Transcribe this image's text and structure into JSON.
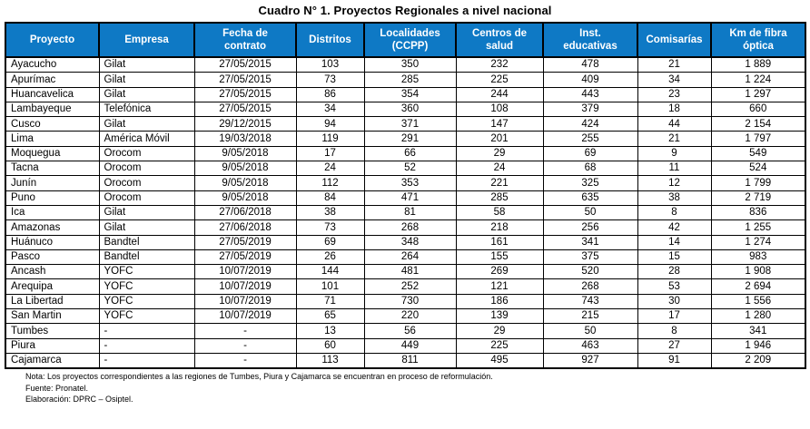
{
  "title": "Cuadro N° 1. Proyectos Regionales a nivel nacional",
  "colors": {
    "header_bg": "#0E79C5",
    "header_text": "#FFFFFF",
    "border": "#000000"
  },
  "table": {
    "columns": [
      {
        "label": "Proyecto",
        "width": 103
      },
      {
        "label": "Empresa",
        "width": 105
      },
      {
        "label": "Fecha de\ncontrato",
        "width": 112
      },
      {
        "label": "Distritos",
        "width": 75
      },
      {
        "label": "Localidades\n(CCPP)",
        "width": 101
      },
      {
        "label": "Centros de\nsalud",
        "width": 96
      },
      {
        "label": "Inst.\neducativas",
        "width": 104
      },
      {
        "label": "Comisarías",
        "width": 81
      },
      {
        "label": "Km de fibra\nóptica",
        "width": 104
      }
    ],
    "rows": [
      [
        "Ayacucho",
        "Gilat",
        "27/05/2015",
        "103",
        "350",
        "232",
        "478",
        "21",
        "1 889"
      ],
      [
        "Apurímac",
        "Gilat",
        "27/05/2015",
        "73",
        "285",
        "225",
        "409",
        "34",
        "1 224"
      ],
      [
        "Huancavelica",
        "Gilat",
        "27/05/2015",
        "86",
        "354",
        "244",
        "443",
        "23",
        "1 297"
      ],
      [
        "Lambayeque",
        "Telefónica",
        "27/05/2015",
        "34",
        "360",
        "108",
        "379",
        "18",
        "660"
      ],
      [
        "Cusco",
        "Gilat",
        "29/12/2015",
        "94",
        "371",
        "147",
        "424",
        "44",
        "2 154"
      ],
      [
        "Lima",
        "América Móvil",
        "19/03/2018",
        "119",
        "291",
        "201",
        "255",
        "21",
        "1 797"
      ],
      [
        "Moquegua",
        "Orocom",
        "9/05/2018",
        "17",
        "66",
        "29",
        "69",
        "9",
        "549"
      ],
      [
        "Tacna",
        "Orocom",
        "9/05/2018",
        "24",
        "52",
        "24",
        "68",
        "11",
        "524"
      ],
      [
        "Junín",
        "Orocom",
        "9/05/2018",
        "112",
        "353",
        "221",
        "325",
        "12",
        "1 799"
      ],
      [
        "Puno",
        "Orocom",
        "9/05/2018",
        "84",
        "471",
        "285",
        "635",
        "38",
        "2 719"
      ],
      [
        "Ica",
        "Gilat",
        "27/06/2018",
        "38",
        "81",
        "58",
        "50",
        "8",
        "836"
      ],
      [
        "Amazonas",
        "Gilat",
        "27/06/2018",
        "73",
        "268",
        "218",
        "256",
        "42",
        "1 255"
      ],
      [
        "Huánuco",
        "Bandtel",
        "27/05/2019",
        "69",
        "348",
        "161",
        "341",
        "14",
        "1 274"
      ],
      [
        "Pasco",
        "Bandtel",
        "27/05/2019",
        "26",
        "264",
        "155",
        "375",
        "15",
        "983"
      ],
      [
        "Ancash",
        "YOFC",
        "10/07/2019",
        "144",
        "481",
        "269",
        "520",
        "28",
        "1 908"
      ],
      [
        "Arequipa",
        "YOFC",
        "10/07/2019",
        "101",
        "252",
        "121",
        "268",
        "53",
        "2 694"
      ],
      [
        "La Libertad",
        "YOFC",
        "10/07/2019",
        "71",
        "730",
        "186",
        "743",
        "30",
        "1 556"
      ],
      [
        "San Martin",
        "YOFC",
        "10/07/2019",
        "65",
        "220",
        "139",
        "215",
        "17",
        "1 280"
      ],
      [
        "Tumbes",
        "-",
        "-",
        "13",
        "56",
        "29",
        "50",
        "8",
        "341"
      ],
      [
        "Piura",
        "-",
        "-",
        "60",
        "449",
        "225",
        "463",
        "27",
        "1 946"
      ],
      [
        "Cajamarca",
        "-",
        "-",
        "113",
        "811",
        "495",
        "927",
        "91",
        "2 209"
      ]
    ]
  },
  "notes": {
    "nota": "Nota: Los proyectos correspondientes a las regiones de Tumbes, Piura y Cajamarca se encuentran en proceso de reformulación.",
    "fuente": "Fuente: Pronatel.",
    "elaboracion": "Elaboración: DPRC – Osiptel."
  }
}
